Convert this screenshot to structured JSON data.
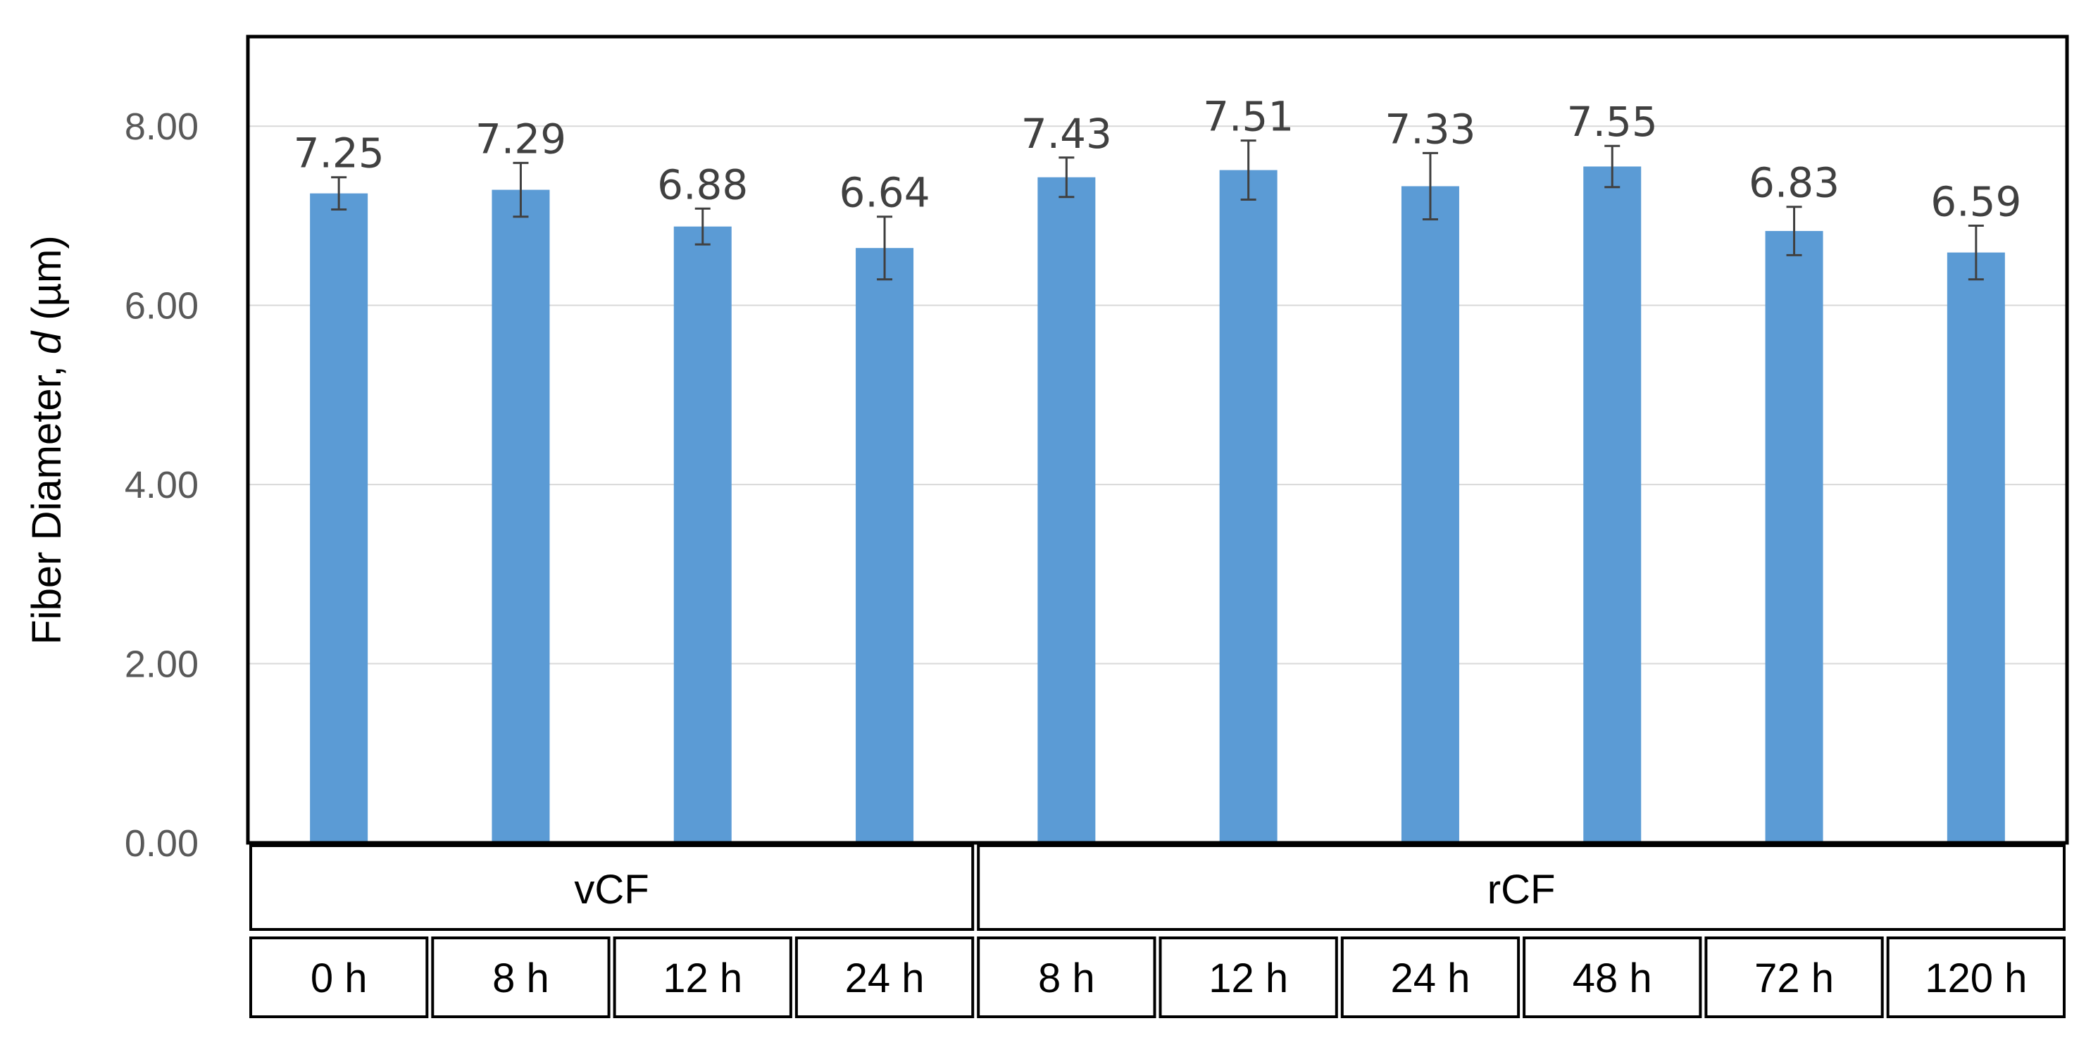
{
  "chart_data": {
    "type": "bar",
    "title": "",
    "ylabel_prefix": "Fiber Diameter, ",
    "ylabel_var": "d",
    "ylabel_unit": " (µm)",
    "ylim": [
      0,
      9
    ],
    "yticks": [
      "0.00",
      "2.00",
      "4.00",
      "6.00",
      "8.00"
    ],
    "ytick_values": [
      0,
      2,
      4,
      6,
      8
    ],
    "groups": [
      {
        "name": "vCF",
        "categories": [
          "0 h",
          "8 h",
          "12 h",
          "24 h"
        ]
      },
      {
        "name": "rCF",
        "categories": [
          "8 h",
          "12 h",
          "24 h",
          "48 h",
          "72 h",
          "120 h"
        ]
      }
    ],
    "values": [
      7.25,
      7.29,
      6.88,
      6.64,
      7.43,
      7.51,
      7.33,
      7.55,
      6.83,
      6.59
    ],
    "value_labels": [
      "7.25",
      "7.29",
      "6.88",
      "6.64",
      "7.43",
      "7.51",
      "7.33",
      "7.55",
      "6.83",
      "6.59"
    ],
    "errors": [
      0.18,
      0.3,
      0.2,
      0.35,
      0.22,
      0.33,
      0.37,
      0.23,
      0.27,
      0.3
    ],
    "grid": true,
    "bar_color": "#5B9BD5",
    "grid_color": "#D9D9D9",
    "error_color": "#404040"
  }
}
